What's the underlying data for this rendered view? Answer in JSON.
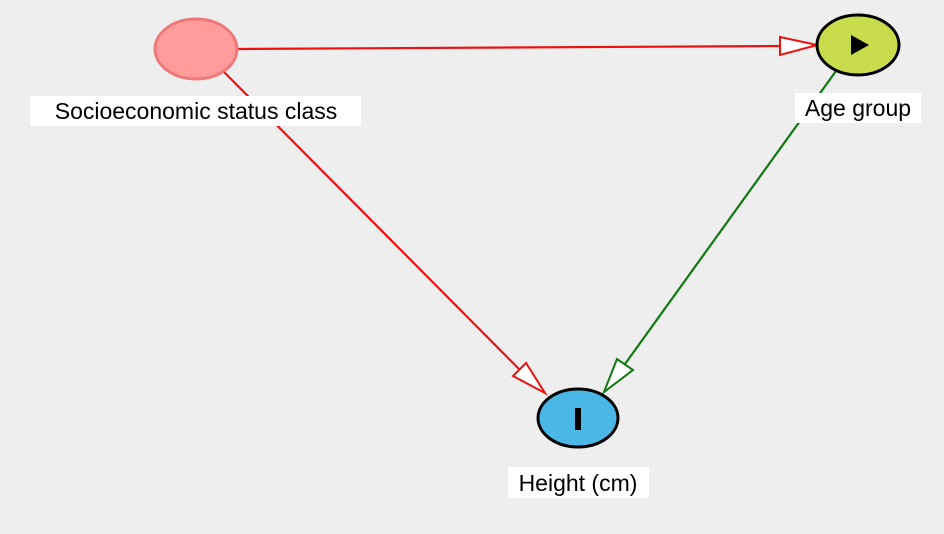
{
  "diagram": {
    "type": "causal-dag",
    "nodes": [
      {
        "id": "ses",
        "label": "Socioeconomic status class",
        "role": "adjusted",
        "fill": "#ff9b9b",
        "stroke": "#f07878",
        "icon": "none"
      },
      {
        "id": "age",
        "label": "Age group",
        "role": "exposure",
        "fill": "#c9dc4c",
        "stroke": "#000000",
        "icon": "play-icon"
      },
      {
        "id": "height",
        "label": "Height (cm)",
        "role": "outcome",
        "fill": "#4ab7e6",
        "stroke": "#000000",
        "icon": "bar-icon"
      }
    ],
    "edges": [
      {
        "from": "ses",
        "to": "age",
        "color": "#ee1111"
      },
      {
        "from": "ses",
        "to": "height",
        "color": "#ee1111"
      },
      {
        "from": "age",
        "to": "height",
        "color": "#117711"
      }
    ]
  }
}
